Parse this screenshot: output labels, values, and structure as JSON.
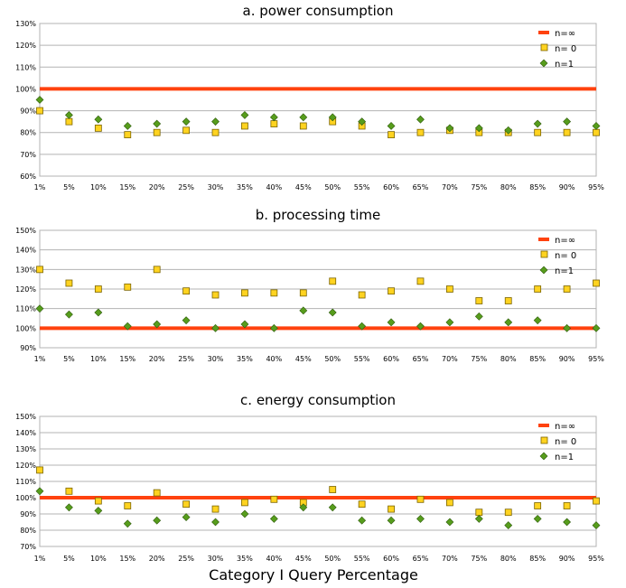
{
  "chart_data": {
    "type": "scatter",
    "x_title": "Category I Query Percentage",
    "categories": [
      "1%",
      "5%",
      "10%",
      "15%",
      "20%",
      "25%",
      "30%",
      "35%",
      "40%",
      "45%",
      "50%",
      "55%",
      "60%",
      "65%",
      "70%",
      "75%",
      "80%",
      "85%",
      "90%",
      "95%"
    ],
    "panels": [
      {
        "title": "a. power consumption",
        "ylim": [
          60,
          130
        ],
        "yticks": [
          "60%",
          "70%",
          "80%",
          "90%",
          "100%",
          "110%",
          "120%",
          "130%"
        ],
        "grid": true,
        "legend_position": "top-right",
        "series": [
          {
            "name": "n=∞",
            "kind": "line",
            "color": "#ff420e",
            "value": 100
          },
          {
            "name": "n= 0",
            "kind": "square",
            "color": "#ffd320",
            "values": [
              90,
              85,
              82,
              79,
              80,
              81,
              80,
              83,
              84,
              83,
              85,
              83,
              79,
              80,
              81,
              80,
              80,
              80,
              80,
              80
            ]
          },
          {
            "name": "n=1",
            "kind": "diamond",
            "color": "#579d1c",
            "values": [
              95,
              88,
              86,
              83,
              84,
              85,
              85,
              88,
              87,
              87,
              87,
              85,
              83,
              86,
              82,
              82,
              81,
              84,
              85,
              83
            ]
          }
        ]
      },
      {
        "title": "b. processing time",
        "ylim": [
          90,
          150
        ],
        "yticks": [
          "90%",
          "100%",
          "110%",
          "120%",
          "130%",
          "140%",
          "150%"
        ],
        "grid": true,
        "legend_position": "top-right",
        "series": [
          {
            "name": "n=∞",
            "kind": "line",
            "color": "#ff420e",
            "value": 100
          },
          {
            "name": "n= 0",
            "kind": "square",
            "color": "#ffd320",
            "values": [
              130,
              123,
              120,
              121,
              130,
              119,
              117,
              118,
              118,
              118,
              124,
              117,
              119,
              124,
              120,
              114,
              114,
              120,
              120,
              123
            ]
          },
          {
            "name": "n=1",
            "kind": "diamond",
            "color": "#579d1c",
            "values": [
              110,
              107,
              108,
              101,
              102,
              104,
              100,
              102,
              100,
              109,
              108,
              101,
              103,
              101,
              103,
              106,
              103,
              104,
              100,
              100
            ]
          }
        ]
      },
      {
        "title": "c. energy consumption",
        "ylim": [
          70,
          150
        ],
        "yticks": [
          "70%",
          "80%",
          "90%",
          "100%",
          "110%",
          "120%",
          "130%",
          "140%",
          "150%"
        ],
        "grid": true,
        "legend_position": "top-right",
        "series": [
          {
            "name": "n=∞",
            "kind": "line",
            "color": "#ff420e",
            "value": 100
          },
          {
            "name": "n= 0",
            "kind": "square",
            "color": "#ffd320",
            "values": [
              117,
              104,
              98,
              95,
              103,
              96,
              93,
              97,
              99,
              97,
              105,
              96,
              93,
              99,
              97,
              91,
              91,
              95,
              95,
              98
            ]
          },
          {
            "name": "n=1",
            "kind": "diamond",
            "color": "#579d1c",
            "values": [
              104,
              94,
              92,
              84,
              86,
              88,
              85,
              90,
              87,
              94,
              94,
              86,
              86,
              87,
              85,
              87,
              83,
              87,
              85,
              83
            ]
          }
        ]
      }
    ]
  }
}
